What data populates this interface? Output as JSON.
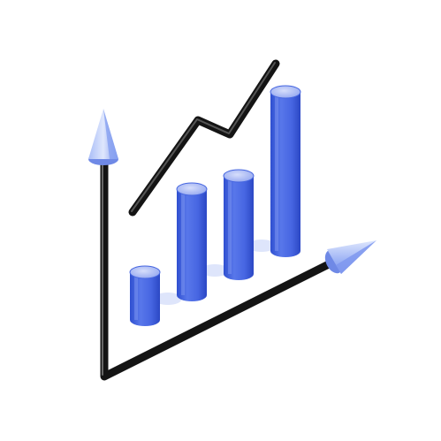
{
  "illustration": {
    "icon": "growth-chart-icon",
    "bar_levels": [
      0.18,
      0.4,
      0.37,
      0.6
    ],
    "colors": {
      "bar_side": "#4666e0",
      "bar_top": "#aebcf7",
      "bar_shadow": "#dbe3fb",
      "axis": "#141414",
      "trend_line": "#141414",
      "arrowhead": "#8fa8f3"
    }
  }
}
